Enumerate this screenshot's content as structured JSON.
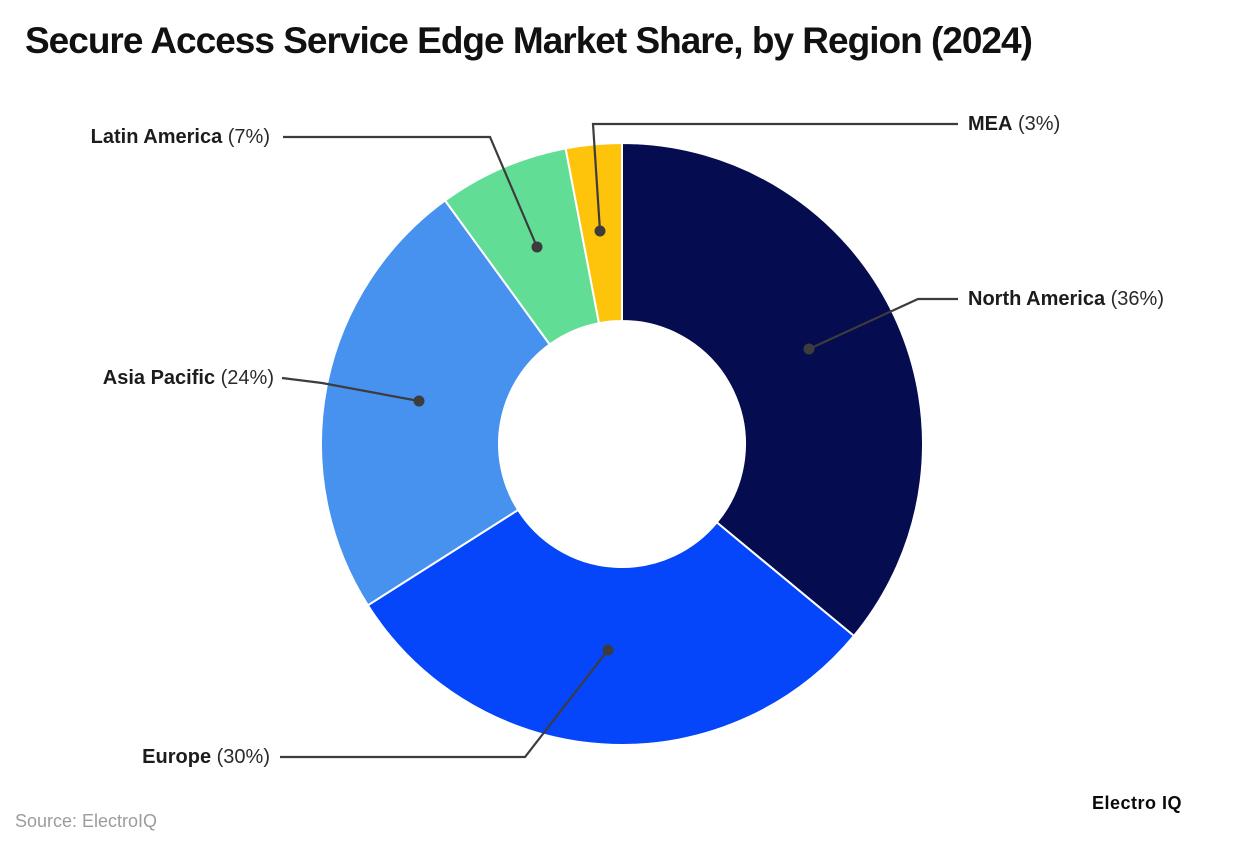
{
  "title": "Secure Access Service Edge Market Share, by Region (2024)",
  "source_note": "Source: ElectroIQ",
  "brand": "Electro IQ",
  "chart_data": {
    "type": "pie",
    "subtype": "donut",
    "title": "Secure Access Service Edge Market Share, by Region (2024)",
    "unit": "percent",
    "categories": [
      "North America",
      "Europe",
      "Asia Pacific",
      "Latin America",
      "MEA"
    ],
    "values": [
      36,
      30,
      24,
      7,
      3
    ],
    "colors": [
      "#050D50",
      "#0546FA",
      "#4791EF",
      "#62DD96",
      "#FEC30B"
    ],
    "start_angle_deg": 0,
    "direction": "clockwise",
    "inner_radius_ratio": 0.41,
    "legend_position": "callout-labels",
    "leader_line_color": "#3C3C3C",
    "callouts": [
      {
        "region": "North America",
        "pct": "(36%)"
      },
      {
        "region": "Europe",
        "pct": "(30%)"
      },
      {
        "region": "Asia Pacific",
        "pct": "(24%)"
      },
      {
        "region": "Latin America",
        "pct": "(7%)"
      },
      {
        "region": "MEA",
        "pct": "(3%)"
      }
    ]
  }
}
